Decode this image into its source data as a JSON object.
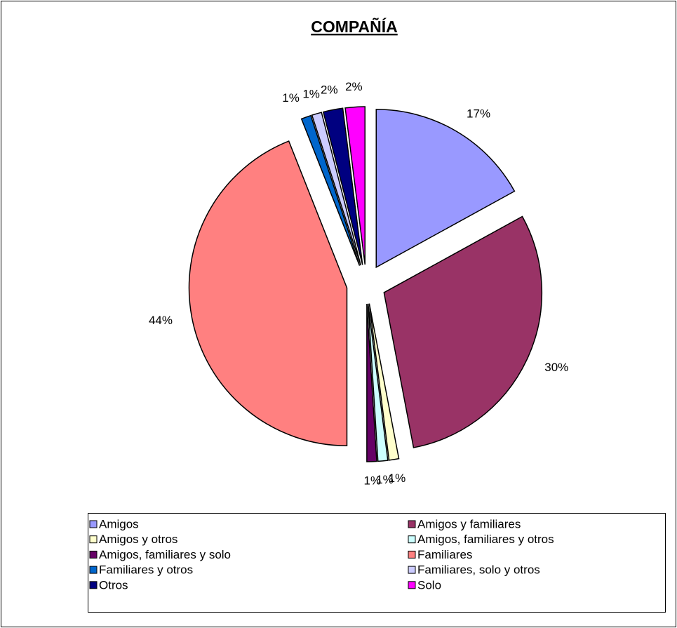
{
  "chart_data": {
    "type": "pie",
    "title": "COMPAÑÍA",
    "categories": [
      "Amigos",
      "Amigos y familiares",
      "Amigos y otros",
      "Amigos, familiares y otros",
      "Amigos, familiares y solo",
      "Familiares",
      "Familiares y otros",
      "Familiares, solo y otros",
      "Otros",
      "Solo"
    ],
    "values": [
      17,
      30,
      1,
      1,
      1,
      44,
      1,
      1,
      2,
      2
    ],
    "value_labels": [
      "17%",
      "30%",
      "1%",
      "1%",
      "1%",
      "44%",
      "1%",
      "1%",
      "2%",
      "2%"
    ],
    "colors": [
      "#9999ff",
      "#993366",
      "#ffffcc",
      "#ccffff",
      "#660066",
      "#ff8080",
      "#0066cc",
      "#ccccff",
      "#000080",
      "#ff00ff"
    ],
    "legend": "bottom"
  }
}
